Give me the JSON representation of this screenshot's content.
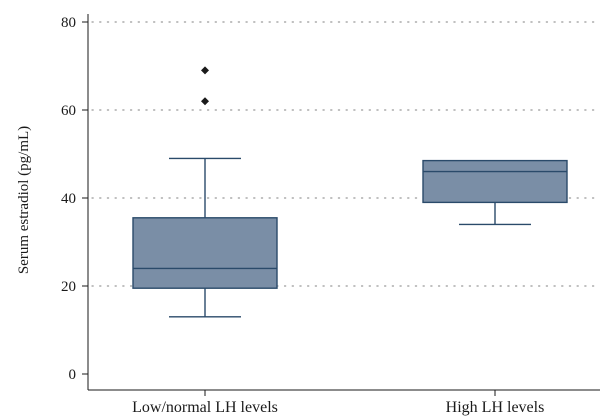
{
  "chart_data": {
    "type": "box",
    "title": "",
    "xlabel": "",
    "ylabel": "Serum estradiol (pg/mL)",
    "ylim": [
      0,
      80
    ],
    "yticks": [
      0,
      20,
      40,
      60,
      80
    ],
    "grid": "horizontal-dotted",
    "categories": [
      "Low/normal LH levels",
      "High LH levels"
    ],
    "boxes": [
      {
        "category": "Low/normal LH levels",
        "whisker_low": 13,
        "q1": 19.5,
        "median": 24,
        "q3": 35.5,
        "whisker_high": 49,
        "outliers": [
          62,
          69
        ]
      },
      {
        "category": "High LH levels",
        "whisker_low": 34,
        "q1": 39,
        "median": 46,
        "q3": 48.5,
        "whisker_high": 48.5,
        "outliers": []
      }
    ],
    "colors": {
      "box_fill": "#7a8ea6",
      "box_stroke": "#2a4a6a",
      "grid": "#9a9a9a",
      "axis": "#1a1a1a"
    }
  }
}
